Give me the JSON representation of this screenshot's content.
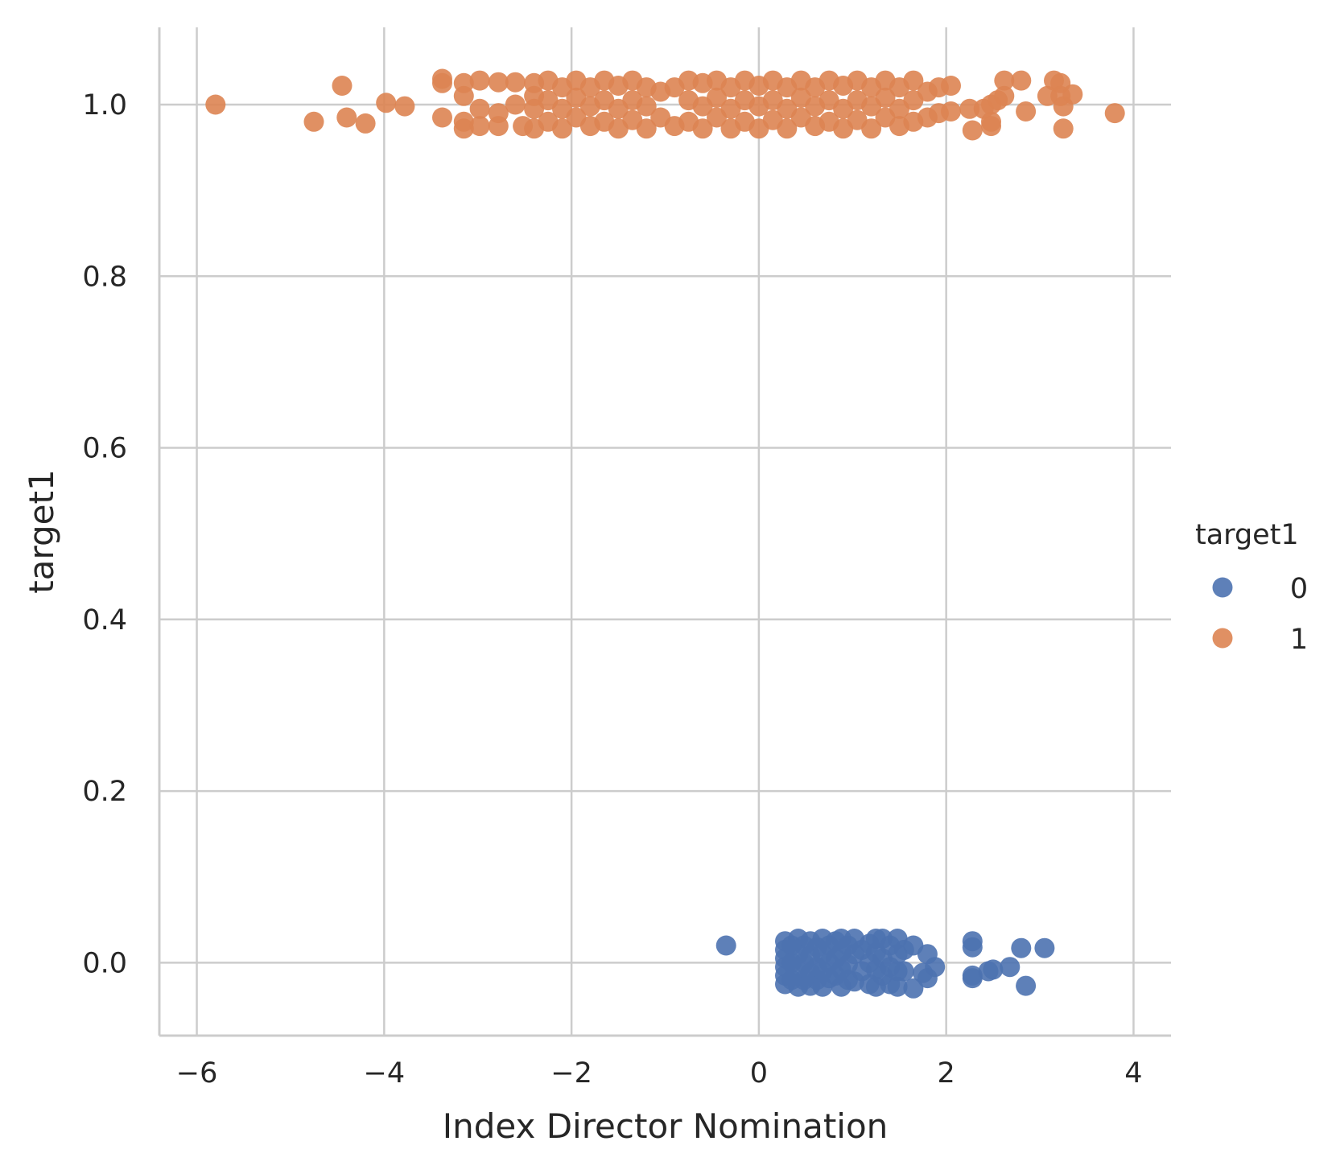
{
  "chart_data": {
    "type": "scatter",
    "xlabel": "Index Director Nomination",
    "ylabel": "target1",
    "xlim": [
      -6.4,
      4.4
    ],
    "ylim": [
      -0.085,
      1.09
    ],
    "xticks": [
      -6,
      -4,
      -2,
      0,
      2,
      4
    ],
    "xtick_labels": [
      "−6",
      "−4",
      "−2",
      "0",
      "2",
      "4"
    ],
    "yticks": [
      0.0,
      0.2,
      0.4,
      0.6,
      0.8,
      1.0
    ],
    "ytick_labels": [
      "0.0",
      "0.2",
      "0.4",
      "0.6",
      "0.8",
      "1.0"
    ],
    "grid": true,
    "legend": {
      "title": "target1",
      "placement": "right",
      "entries": [
        {
          "label": "0",
          "color": "#4c72b0"
        },
        {
          "label": "1",
          "color": "#dd8452"
        }
      ]
    },
    "series": [
      {
        "color": "#4c72b0",
        "points": [
          {
            "x": -0.35,
            "y": 0.02
          },
          {
            "x": 0.28,
            "y": 0.025
          },
          {
            "x": 0.28,
            "y": 0.015
          },
          {
            "x": 0.28,
            "y": 0.005
          },
          {
            "x": 0.28,
            "y": -0.005
          },
          {
            "x": 0.28,
            "y": -0.015
          },
          {
            "x": 0.28,
            "y": -0.025
          },
          {
            "x": 0.35,
            "y": 0.02
          },
          {
            "x": 0.35,
            "y": 0.0
          },
          {
            "x": 0.35,
            "y": -0.02
          },
          {
            "x": 0.42,
            "y": 0.028
          },
          {
            "x": 0.42,
            "y": 0.01
          },
          {
            "x": 0.42,
            "y": -0.01
          },
          {
            "x": 0.42,
            "y": -0.028
          },
          {
            "x": 0.48,
            "y": 0.02
          },
          {
            "x": 0.48,
            "y": 0.0
          },
          {
            "x": 0.48,
            "y": -0.02
          },
          {
            "x": 0.55,
            "y": 0.025
          },
          {
            "x": 0.55,
            "y": 0.008
          },
          {
            "x": 0.55,
            "y": -0.012
          },
          {
            "x": 0.55,
            "y": -0.027
          },
          {
            "x": 0.62,
            "y": 0.018
          },
          {
            "x": 0.62,
            "y": -0.005
          },
          {
            "x": 0.62,
            "y": -0.02
          },
          {
            "x": 0.68,
            "y": 0.028
          },
          {
            "x": 0.68,
            "y": 0.01
          },
          {
            "x": 0.68,
            "y": -0.01
          },
          {
            "x": 0.68,
            "y": -0.028
          },
          {
            "x": 0.75,
            "y": 0.02
          },
          {
            "x": 0.75,
            "y": 0.0
          },
          {
            "x": 0.75,
            "y": -0.018
          },
          {
            "x": 0.82,
            "y": 0.025
          },
          {
            "x": 0.82,
            "y": 0.005
          },
          {
            "x": 0.82,
            "y": -0.015
          },
          {
            "x": 0.88,
            "y": 0.028
          },
          {
            "x": 0.88,
            "y": 0.012
          },
          {
            "x": 0.88,
            "y": -0.008
          },
          {
            "x": 0.88,
            "y": -0.028
          },
          {
            "x": 0.95,
            "y": 0.02
          },
          {
            "x": 0.95,
            "y": -0.002
          },
          {
            "x": 0.95,
            "y": -0.02
          },
          {
            "x": 1.02,
            "y": 0.028
          },
          {
            "x": 1.02,
            "y": 0.01
          },
          {
            "x": 1.02,
            "y": -0.022
          },
          {
            "x": 1.1,
            "y": 0.015
          },
          {
            "x": 1.1,
            "y": -0.01
          },
          {
            "x": 1.18,
            "y": 0.022
          },
          {
            "x": 1.18,
            "y": 0.0
          },
          {
            "x": 1.18,
            "y": -0.025
          },
          {
            "x": 1.25,
            "y": 0.028
          },
          {
            "x": 1.25,
            "y": 0.012
          },
          {
            "x": 1.25,
            "y": -0.008
          },
          {
            "x": 1.25,
            "y": -0.028
          },
          {
            "x": 1.32,
            "y": 0.028
          },
          {
            "x": 1.32,
            "y": 0.005
          },
          {
            "x": 1.32,
            "y": -0.015
          },
          {
            "x": 1.4,
            "y": 0.02
          },
          {
            "x": 1.4,
            "y": -0.005
          },
          {
            "x": 1.4,
            "y": -0.025
          },
          {
            "x": 1.48,
            "y": 0.028
          },
          {
            "x": 1.48,
            "y": 0.01
          },
          {
            "x": 1.48,
            "y": -0.01
          },
          {
            "x": 1.48,
            "y": -0.028
          },
          {
            "x": 1.55,
            "y": 0.015
          },
          {
            "x": 1.55,
            "y": -0.01
          },
          {
            "x": 1.65,
            "y": 0.02
          },
          {
            "x": 1.65,
            "y": -0.03
          },
          {
            "x": 1.75,
            "y": -0.012
          },
          {
            "x": 1.8,
            "y": 0.01
          },
          {
            "x": 1.8,
            "y": -0.018
          },
          {
            "x": 1.88,
            "y": -0.005
          },
          {
            "x": 2.28,
            "y": 0.025
          },
          {
            "x": 2.28,
            "y": 0.018
          },
          {
            "x": 2.28,
            "y": -0.015
          },
          {
            "x": 2.28,
            "y": -0.018
          },
          {
            "x": 2.45,
            "y": -0.01
          },
          {
            "x": 2.5,
            "y": -0.008
          },
          {
            "x": 2.68,
            "y": -0.005
          },
          {
            "x": 2.8,
            "y": 0.017
          },
          {
            "x": 2.85,
            "y": -0.027
          },
          {
            "x": 3.05,
            "y": 0.017
          }
        ]
      },
      {
        "color": "#dd8452",
        "points": [
          {
            "x": -5.8,
            "y": 1.0
          },
          {
            "x": -4.75,
            "y": 0.98
          },
          {
            "x": -4.45,
            "y": 1.022
          },
          {
            "x": -4.4,
            "y": 0.985
          },
          {
            "x": -4.2,
            "y": 0.978
          },
          {
            "x": -3.98,
            "y": 1.002
          },
          {
            "x": -3.78,
            "y": 0.998
          },
          {
            "x": -3.38,
            "y": 1.03
          },
          {
            "x": -3.38,
            "y": 1.025
          },
          {
            "x": -3.38,
            "y": 0.985
          },
          {
            "x": -3.15,
            "y": 1.025
          },
          {
            "x": -3.15,
            "y": 1.01
          },
          {
            "x": -3.15,
            "y": 0.98
          },
          {
            "x": -3.15,
            "y": 0.972
          },
          {
            "x": -2.98,
            "y": 1.028
          },
          {
            "x": -2.98,
            "y": 0.995
          },
          {
            "x": -2.98,
            "y": 0.975
          },
          {
            "x": -2.78,
            "y": 1.026
          },
          {
            "x": -2.78,
            "y": 0.99
          },
          {
            "x": -2.78,
            "y": 0.975
          },
          {
            "x": -2.6,
            "y": 1.026
          },
          {
            "x": -2.6,
            "y": 1.0
          },
          {
            "x": -2.52,
            "y": 0.975
          },
          {
            "x": -2.4,
            "y": 1.025
          },
          {
            "x": -2.4,
            "y": 1.01
          },
          {
            "x": -2.4,
            "y": 0.995
          },
          {
            "x": -2.4,
            "y": 0.972
          },
          {
            "x": -2.25,
            "y": 1.028
          },
          {
            "x": -2.25,
            "y": 1.005
          },
          {
            "x": -2.25,
            "y": 0.98
          },
          {
            "x": -2.1,
            "y": 1.02
          },
          {
            "x": -2.1,
            "y": 0.995
          },
          {
            "x": -2.1,
            "y": 0.972
          },
          {
            "x": -1.95,
            "y": 1.028
          },
          {
            "x": -1.95,
            "y": 1.008
          },
          {
            "x": -1.95,
            "y": 0.985
          },
          {
            "x": -1.8,
            "y": 1.02
          },
          {
            "x": -1.8,
            "y": 0.998
          },
          {
            "x": -1.8,
            "y": 0.975
          },
          {
            "x": -1.65,
            "y": 1.028
          },
          {
            "x": -1.65,
            "y": 1.005
          },
          {
            "x": -1.65,
            "y": 0.98
          },
          {
            "x": -1.5,
            "y": 1.022
          },
          {
            "x": -1.5,
            "y": 0.995
          },
          {
            "x": -1.5,
            "y": 0.972
          },
          {
            "x": -1.35,
            "y": 1.028
          },
          {
            "x": -1.35,
            "y": 1.005
          },
          {
            "x": -1.35,
            "y": 0.982
          },
          {
            "x": -1.2,
            "y": 1.02
          },
          {
            "x": -1.2,
            "y": 0.998
          },
          {
            "x": -1.2,
            "y": 0.972
          },
          {
            "x": -1.05,
            "y": 1.015
          },
          {
            "x": -1.05,
            "y": 0.985
          },
          {
            "x": -0.9,
            "y": 1.02
          },
          {
            "x": -0.9,
            "y": 0.975
          },
          {
            "x": -0.75,
            "y": 1.028
          },
          {
            "x": -0.75,
            "y": 1.005
          },
          {
            "x": -0.75,
            "y": 0.98
          },
          {
            "x": -0.6,
            "y": 1.025
          },
          {
            "x": -0.6,
            "y": 0.998
          },
          {
            "x": -0.6,
            "y": 0.972
          },
          {
            "x": -0.45,
            "y": 1.028
          },
          {
            "x": -0.45,
            "y": 1.008
          },
          {
            "x": -0.45,
            "y": 0.985
          },
          {
            "x": -0.3,
            "y": 1.02
          },
          {
            "x": -0.3,
            "y": 0.995
          },
          {
            "x": -0.3,
            "y": 0.972
          },
          {
            "x": -0.15,
            "y": 1.028
          },
          {
            "x": -0.15,
            "y": 1.005
          },
          {
            "x": -0.15,
            "y": 0.98
          },
          {
            "x": 0.0,
            "y": 1.022
          },
          {
            "x": 0.0,
            "y": 0.998
          },
          {
            "x": 0.0,
            "y": 0.972
          },
          {
            "x": 0.15,
            "y": 1.028
          },
          {
            "x": 0.15,
            "y": 1.005
          },
          {
            "x": 0.15,
            "y": 0.982
          },
          {
            "x": 0.3,
            "y": 1.02
          },
          {
            "x": 0.3,
            "y": 0.995
          },
          {
            "x": 0.3,
            "y": 0.972
          },
          {
            "x": 0.45,
            "y": 1.028
          },
          {
            "x": 0.45,
            "y": 1.008
          },
          {
            "x": 0.45,
            "y": 0.985
          },
          {
            "x": 0.6,
            "y": 1.02
          },
          {
            "x": 0.6,
            "y": 0.998
          },
          {
            "x": 0.6,
            "y": 0.975
          },
          {
            "x": 0.75,
            "y": 1.028
          },
          {
            "x": 0.75,
            "y": 1.005
          },
          {
            "x": 0.75,
            "y": 0.98
          },
          {
            "x": 0.9,
            "y": 1.022
          },
          {
            "x": 0.9,
            "y": 0.995
          },
          {
            "x": 0.9,
            "y": 0.972
          },
          {
            "x": 1.05,
            "y": 1.028
          },
          {
            "x": 1.05,
            "y": 1.005
          },
          {
            "x": 1.05,
            "y": 0.982
          },
          {
            "x": 1.2,
            "y": 1.02
          },
          {
            "x": 1.2,
            "y": 0.998
          },
          {
            "x": 1.2,
            "y": 0.972
          },
          {
            "x": 1.35,
            "y": 1.028
          },
          {
            "x": 1.35,
            "y": 1.008
          },
          {
            "x": 1.35,
            "y": 0.985
          },
          {
            "x": 1.5,
            "y": 1.02
          },
          {
            "x": 1.5,
            "y": 0.995
          },
          {
            "x": 1.5,
            "y": 0.975
          },
          {
            "x": 1.65,
            "y": 1.028
          },
          {
            "x": 1.65,
            "y": 1.005
          },
          {
            "x": 1.65,
            "y": 0.98
          },
          {
            "x": 1.8,
            "y": 1.015
          },
          {
            "x": 1.8,
            "y": 0.985
          },
          {
            "x": 1.92,
            "y": 1.02
          },
          {
            "x": 1.92,
            "y": 0.99
          },
          {
            "x": 2.05,
            "y": 1.022
          },
          {
            "x": 2.05,
            "y": 0.992
          },
          {
            "x": 2.25,
            "y": 0.995
          },
          {
            "x": 2.28,
            "y": 0.97
          },
          {
            "x": 2.4,
            "y": 0.995
          },
          {
            "x": 2.48,
            "y": 0.975
          },
          {
            "x": 2.48,
            "y": 0.98
          },
          {
            "x": 2.48,
            "y": 1.0
          },
          {
            "x": 2.55,
            "y": 1.005
          },
          {
            "x": 2.62,
            "y": 1.028
          },
          {
            "x": 2.62,
            "y": 1.01
          },
          {
            "x": 2.8,
            "y": 1.028
          },
          {
            "x": 2.85,
            "y": 0.992
          },
          {
            "x": 3.08,
            "y": 1.01
          },
          {
            "x": 3.15,
            "y": 1.028
          },
          {
            "x": 3.22,
            "y": 1.025
          },
          {
            "x": 3.22,
            "y": 1.01
          },
          {
            "x": 3.25,
            "y": 0.998
          },
          {
            "x": 3.25,
            "y": 0.972
          },
          {
            "x": 3.35,
            "y": 1.012
          },
          {
            "x": 3.8,
            "y": 0.99
          }
        ]
      }
    ]
  }
}
